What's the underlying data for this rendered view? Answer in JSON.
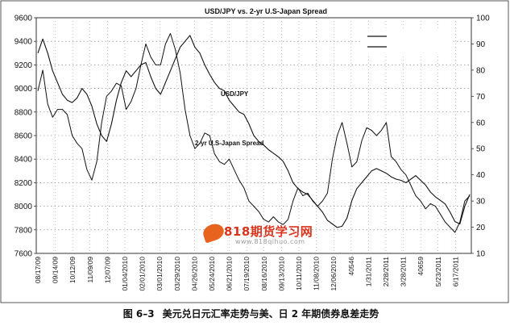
{
  "caption": {
    "number": "图 6–3",
    "text": "美元兑日元汇率走势与美、日 2 年期债券息差走势"
  },
  "watermark": {
    "title": "818期货学习网",
    "url": "www.818qihuo.com"
  },
  "chart_data": {
    "type": "line",
    "title": "USD/JPY vs. 2-yr U.S-Japan Spread",
    "grid": true,
    "legend": {
      "placement": "top-right",
      "entries": [
        "",
        ""
      ]
    },
    "x_tick_labels": [
      "08/17/09",
      "09/14/09",
      "10/12/09",
      "11/09/09",
      "12/07/09",
      "01/04/2010",
      "02/01/2010",
      "03/01/2010",
      "03/29/2010",
      "04/26/2010",
      "05/24/2010",
      "06/21/2010",
      "07/19/2010",
      "08/16/2010",
      "09/13/2010",
      "10/11/2010",
      "11/08/2010",
      "12/06/2010",
      "40546",
      "1/31/2011",
      "2/28/2011",
      "3/28/2011",
      "40659",
      "5/23/2011",
      "6/17/2011"
    ],
    "y_left": {
      "ticks": [
        7600,
        7800,
        8000,
        8200,
        8400,
        8600,
        8800,
        9000,
        9200,
        9400,
        9600
      ],
      "range": [
        7600,
        9600
      ]
    },
    "y_right": {
      "ticks": [
        10,
        20,
        30,
        40,
        50,
        60,
        70,
        80,
        90,
        100
      ],
      "range": [
        10,
        100
      ]
    },
    "series": [
      {
        "name": "USD/JPY",
        "axis": "left",
        "values": [
          9300,
          9420,
          9300,
          9150,
          9050,
          8950,
          8900,
          8880,
          8920,
          9000,
          8950,
          8850,
          8700,
          8600,
          8550,
          8700,
          8900,
          9050,
          9150,
          9100,
          9150,
          9200,
          9220,
          9100,
          9000,
          8950,
          9050,
          9150,
          9250,
          9350,
          9400,
          9450,
          9350,
          9300,
          9200,
          9120,
          9050,
          9000,
          8980,
          8900,
          8850,
          8800,
          8780,
          8700,
          8600,
          8550,
          8520,
          8480,
          8450,
          8420,
          8380,
          8300,
          8200,
          8150,
          8120,
          8100,
          8050,
          8000,
          7950,
          7880,
          7850,
          7820,
          7830,
          7900,
          8050,
          8150,
          8200,
          8250,
          8300,
          8320,
          8300,
          8280,
          8250,
          8230,
          8220,
          8200,
          8230,
          8260,
          8220,
          8180,
          8120,
          8080,
          8050,
          8020,
          7950,
          7870,
          7850,
          8000,
          8100
        ]
      },
      {
        "name": "2-yr U.S-Japan Spread",
        "axis": "right",
        "values": [
          72,
          80,
          67,
          62,
          65,
          65,
          63,
          55,
          52,
          50,
          42,
          38,
          45,
          60,
          70,
          72,
          75,
          74,
          65,
          68,
          73,
          82,
          90,
          85,
          82,
          82,
          90,
          94,
          88,
          79,
          65,
          55,
          50,
          52,
          56,
          55,
          48,
          45,
          44,
          46,
          42,
          38,
          35,
          30,
          28,
          26,
          23,
          22,
          24,
          22,
          21,
          23,
          30,
          35,
          32,
          33,
          30,
          28,
          30,
          33,
          46,
          55,
          60,
          52,
          43,
          45,
          53,
          58,
          57,
          55,
          57,
          60,
          47,
          45,
          42,
          40,
          36,
          32,
          30,
          27,
          29,
          28,
          25,
          22,
          20,
          18,
          22,
          30,
          32
        ]
      }
    ],
    "annotations": [
      "USD/JPY",
      "2-yr U.S-Japan Spread"
    ]
  }
}
